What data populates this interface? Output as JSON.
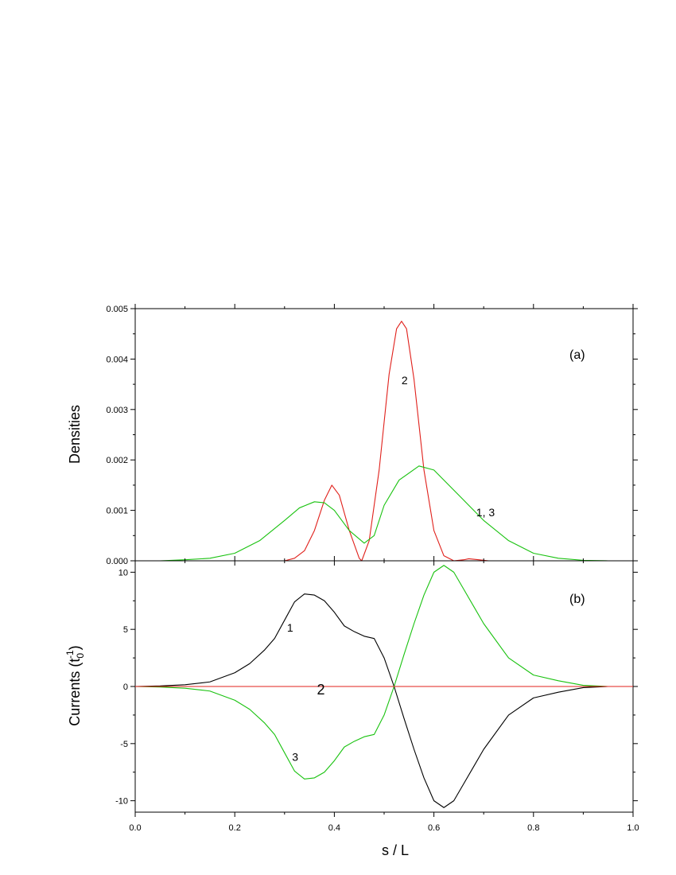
{
  "chart_data": [
    {
      "type": "line",
      "panel_label": "(a)",
      "ylabel": "Densities",
      "xlim": [
        0.0,
        1.0
      ],
      "ylim": [
        0.0,
        0.005
      ],
      "yticks": [
        "0.000",
        "0.001",
        "0.002",
        "0.003",
        "0.004",
        "0.005"
      ],
      "yticks_values": [
        0.0,
        0.001,
        0.002,
        0.003,
        0.004,
        0.005
      ],
      "grid": false,
      "series": [
        {
          "label": "2",
          "color": "#e0201b",
          "x": [
            0.0,
            0.3,
            0.32,
            0.34,
            0.36,
            0.38,
            0.395,
            0.41,
            0.43,
            0.45,
            0.455,
            0.47,
            0.49,
            0.51,
            0.525,
            0.535,
            0.545,
            0.56,
            0.58,
            0.6,
            0.62,
            0.64,
            0.66,
            0.67,
            0.69,
            0.71,
            1.0
          ],
          "y": [
            0.0,
            0.0,
            5e-05,
            0.0002,
            0.0006,
            0.0012,
            0.0015,
            0.0013,
            0.0006,
            5e-05,
            0.0,
            0.0004,
            0.0018,
            0.0037,
            0.0046,
            0.00475,
            0.0046,
            0.0036,
            0.0018,
            0.0006,
            0.0001,
            0.0,
            2e-05,
            4e-05,
            2e-05,
            0.0,
            0.0
          ]
        },
        {
          "label": "1, 3",
          "color": "#19c20f",
          "x": [
            0.0,
            0.05,
            0.1,
            0.15,
            0.2,
            0.25,
            0.3,
            0.33,
            0.36,
            0.38,
            0.4,
            0.43,
            0.46,
            0.48,
            0.5,
            0.53,
            0.57,
            0.6,
            0.63,
            0.66,
            0.7,
            0.75,
            0.8,
            0.85,
            0.9,
            0.95,
            1.0
          ],
          "y": [
            0.0,
            0.0,
            2e-05,
            5e-05,
            0.00015,
            0.0004,
            0.0008,
            0.00105,
            0.00117,
            0.00115,
            0.001,
            0.0006,
            0.00035,
            0.0005,
            0.0011,
            0.0016,
            0.00188,
            0.0018,
            0.0015,
            0.0012,
            0.0008,
            0.0004,
            0.00015,
            5e-05,
            1e-05,
            0.0,
            0.0
          ]
        }
      ],
      "annotations": [
        {
          "text": "2",
          "x": 0.535,
          "y": 0.0035
        },
        {
          "text": "1, 3",
          "x": 0.685,
          "y": 0.00088
        }
      ]
    },
    {
      "type": "line",
      "panel_label": "(b)",
      "ylabel": "Currents (t",
      "ylabel_sub": "0",
      "ylabel_sup": "-1",
      "ylabel_end": ")",
      "xlabel": "s / L",
      "xlim": [
        0.0,
        1.0
      ],
      "ylim": [
        -11,
        11
      ],
      "xticks": [
        "0.0",
        "0.2",
        "0.4",
        "0.6",
        "0.8",
        "1.0"
      ],
      "xticks_values": [
        0.0,
        0.2,
        0.4,
        0.6,
        0.8,
        1.0
      ],
      "yticks": [
        "-10",
        "-5",
        "0",
        "5",
        "10"
      ],
      "yticks_values": [
        -10,
        -5,
        0,
        5,
        10
      ],
      "grid": false,
      "series": [
        {
          "label": "1",
          "color": "#000000",
          "x": [
            0.0,
            0.05,
            0.1,
            0.15,
            0.2,
            0.23,
            0.26,
            0.28,
            0.3,
            0.32,
            0.34,
            0.36,
            0.38,
            0.4,
            0.42,
            0.44,
            0.46,
            0.48,
            0.5,
            0.52,
            0.54,
            0.56,
            0.58,
            0.6,
            0.62,
            0.64,
            0.66,
            0.68,
            0.7,
            0.75,
            0.8,
            0.85,
            0.9,
            0.95,
            1.0
          ],
          "y": [
            0.0,
            0.05,
            0.15,
            0.4,
            1.2,
            2.0,
            3.2,
            4.2,
            5.8,
            7.4,
            8.1,
            8.0,
            7.5,
            6.5,
            5.3,
            4.8,
            4.4,
            4.2,
            2.5,
            0.0,
            -2.8,
            -5.5,
            -8.0,
            -10.0,
            -10.6,
            -10.0,
            -8.5,
            -7.0,
            -5.5,
            -2.5,
            -1.0,
            -0.5,
            -0.1,
            0.0,
            0.0
          ]
        },
        {
          "label": "3",
          "color": "#19c20f",
          "x": [
            0.0,
            0.05,
            0.1,
            0.15,
            0.2,
            0.23,
            0.26,
            0.28,
            0.3,
            0.32,
            0.34,
            0.36,
            0.38,
            0.4,
            0.42,
            0.44,
            0.46,
            0.48,
            0.5,
            0.52,
            0.54,
            0.56,
            0.58,
            0.6,
            0.62,
            0.64,
            0.66,
            0.68,
            0.7,
            0.75,
            0.8,
            0.85,
            0.9,
            0.95,
            1.0
          ],
          "y": [
            0.0,
            -0.05,
            -0.15,
            -0.4,
            -1.2,
            -2.0,
            -3.2,
            -4.2,
            -5.8,
            -7.4,
            -8.1,
            -8.0,
            -7.5,
            -6.5,
            -5.3,
            -4.8,
            -4.4,
            -4.2,
            -2.5,
            0.0,
            2.8,
            5.5,
            8.0,
            10.0,
            10.6,
            10.0,
            8.5,
            7.0,
            5.5,
            2.5,
            1.0,
            0.5,
            0.1,
            0.0,
            0.0
          ]
        },
        {
          "label": "2",
          "color": "#e0201b",
          "x": [
            0.0,
            1.0
          ],
          "y": [
            0.0,
            0.0
          ]
        }
      ],
      "annotations": [
        {
          "text": "1",
          "x": 0.305,
          "y": 4.8
        },
        {
          "text": "3",
          "x": 0.315,
          "y": -6.5
        },
        {
          "text": "2",
          "x": 0.365,
          "y": -0.7,
          "size": "big"
        }
      ]
    }
  ]
}
